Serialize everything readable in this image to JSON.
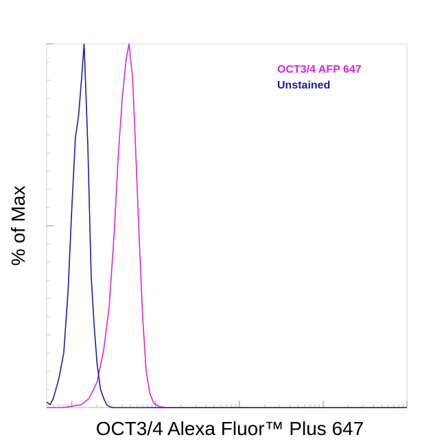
{
  "chart_data": {
    "type": "line",
    "title": "",
    "xlabel": "OCT3/4 Alexa Fluor™ Plus 647",
    "ylabel": "% of Max",
    "x_scale": "log",
    "xlim": [
      0.5,
      10000
    ],
    "ylim": [
      0,
      100
    ],
    "grid": false,
    "legend_position": "top-right",
    "series": [
      {
        "name": "OCT3/4 AFP 647",
        "color": "#e020d8",
        "x": [
          0.5,
          0.8,
          1.0,
          1.3,
          1.6,
          2.0,
          2.4,
          2.8,
          3.2,
          3.6,
          4.0,
          4.4,
          4.8,
          5.3,
          5.8,
          6.4,
          7.0,
          7.7,
          8.5,
          9.5,
          11,
          13,
          16,
          20,
          30,
          100,
          1000,
          10000
        ],
        "values": [
          0,
          0,
          0.4,
          0.8,
          2.5,
          7,
          16,
          28,
          48,
          70,
          85,
          95,
          100,
          91,
          70,
          45,
          25,
          10,
          4,
          1.2,
          0.3,
          0,
          0,
          0,
          0,
          0,
          0,
          0
        ]
      },
      {
        "name": "Unstained",
        "color": "#1a1aa6",
        "x": [
          0.5,
          0.55,
          0.6,
          0.7,
          0.8,
          0.9,
          1.0,
          1.1,
          1.2,
          1.3,
          1.4,
          1.55,
          1.7,
          1.85,
          2.0,
          2.2,
          2.4,
          2.6,
          2.8,
          3.0,
          3.3,
          3.6,
          4.0,
          10,
          100,
          1000,
          10000
        ],
        "values": [
          1.5,
          0.8,
          2.5,
          8,
          15,
          32,
          55,
          74,
          80,
          90,
          100,
          72,
          36,
          22,
          12,
          5,
          2.5,
          0.8,
          0.3,
          0,
          0,
          0,
          0,
          0,
          0,
          0,
          0
        ]
      }
    ]
  }
}
